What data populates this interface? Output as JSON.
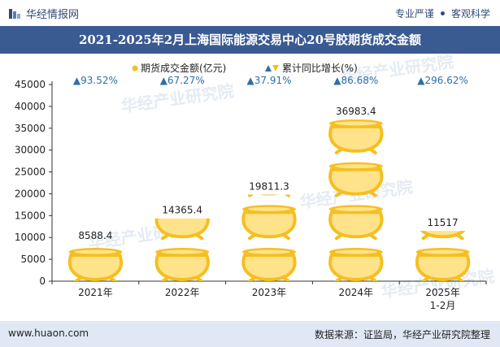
{
  "header": {
    "brand": "华经情报网",
    "tag1": "专业严谨",
    "tag2": "客观科学",
    "title": "2021-2025年2月上海国际能源交易中心20号胶期货成交金额"
  },
  "footer": {
    "url": "www.huaon.com",
    "source": "数据来源：证监局，华经产业研究院整理"
  },
  "watermark": {
    "text": "华经产业研究院",
    "url": "www.huaon.com"
  },
  "colors": {
    "bar": "#f5bf22",
    "bar_inner": "#ffe38a",
    "growth": "#2f6fa8",
    "title_bg": "#3a5a92",
    "footer_bg": "#dfe8f4"
  },
  "chart_data": {
    "type": "bar",
    "title": "2021-2025年2月上海国际能源交易中心20号胶期货成交金额",
    "categories": [
      "2021年",
      "2022年",
      "2023年",
      "2024年",
      "2025年"
    ],
    "category_sublabels": [
      "",
      "",
      "",
      "",
      "1-2月"
    ],
    "series": [
      {
        "name": "期货成交金额(亿元)",
        "values": [
          8588.4,
          14365.4,
          19811.3,
          36983.4,
          11517
        ],
        "labels": [
          "8588.4",
          "14365.4",
          "19811.3",
          "36983.4",
          "11517"
        ]
      }
    ],
    "growth": {
      "name": "累计同比增长(%)",
      "values": [
        93.52,
        67.27,
        37.91,
        86.68,
        296.62
      ],
      "labels": [
        "▲93.52%",
        "▲67.27%",
        "▲37.91%",
        "▲86.68%",
        "▲296.62%"
      ]
    },
    "legend": [
      "期货成交金额(亿元)",
      "累计同比增长(%)"
    ],
    "ylim": [
      0,
      45000
    ],
    "yticks": [
      0,
      5000,
      10000,
      15000,
      20000,
      25000,
      30000,
      35000,
      40000,
      45000
    ],
    "xlabel": "",
    "ylabel": ""
  }
}
